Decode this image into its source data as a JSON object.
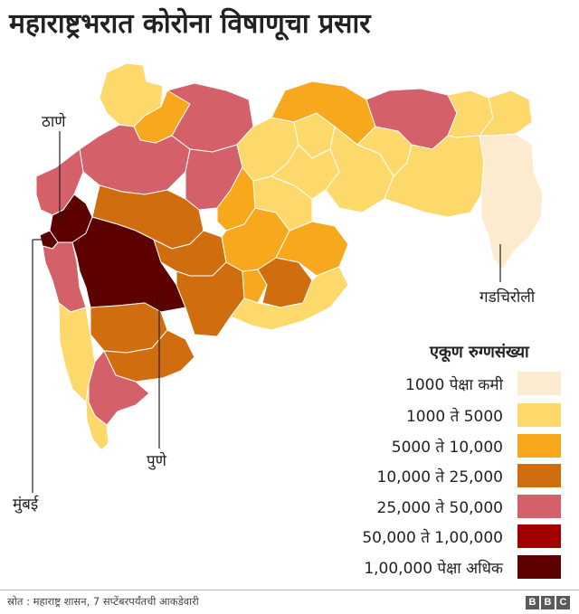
{
  "title": "महाराष्ट्रभरात कोरोना विषाणूचा प्रसार",
  "callouts": {
    "thane": "ठाणे",
    "mumbai": "मुंबई",
    "pune": "पुणे",
    "gadchiroli": "गडचिरोली"
  },
  "legend": {
    "title": "एकूण रुग्णसंख्या",
    "items": [
      {
        "label": "1000 पेक्षा कमी",
        "color": "#fdebd0"
      },
      {
        "label": "1000 ते 5000",
        "color": "#fdd86b"
      },
      {
        "label": "5000 ते 10,000",
        "color": "#f7a81c"
      },
      {
        "label": "10,000 ते 25,000",
        "color": "#d06d0f"
      },
      {
        "label": "25,000 ते 50,000",
        "color": "#d4606a"
      },
      {
        "label": "50,000 ते 1,00,000",
        "color": "#a30000"
      },
      {
        "label": "1,00,000 पेक्षा अधिक",
        "color": "#5c0000"
      }
    ]
  },
  "source": "स्रोत : महाराष्ट्र शासन, 7 सप्टेंबरपर्यंतची आकडेवारी",
  "logo": [
    "B",
    "B",
    "C"
  ]
}
